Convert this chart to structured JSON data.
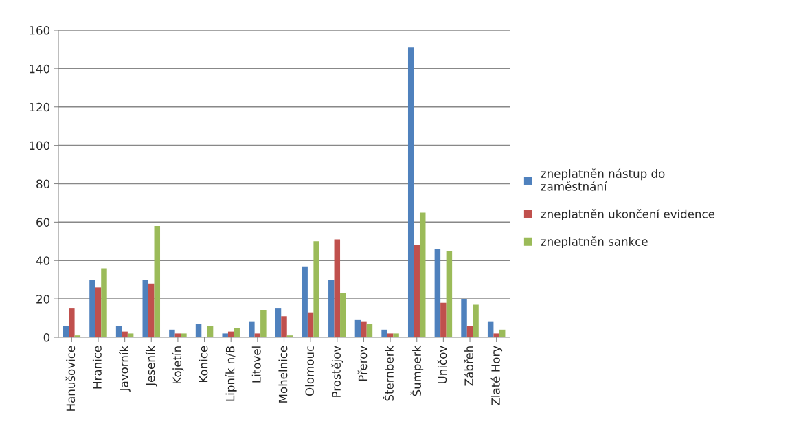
{
  "chart_data": {
    "type": "bar",
    "categories": [
      "Hanušovice",
      "Hranice",
      "Javorník",
      "Jeseník",
      "Kojetín",
      "Konice",
      "Lipník n/B",
      "Litovel",
      "Mohelnice",
      "Olomouc",
      "Prostějov",
      "Přerov",
      "Šternberk",
      "Šumperk",
      "Uničov",
      "Zábřeh",
      "Zlaté Hory"
    ],
    "series": [
      {
        "name": "zneplatněn nástup do\nzaměstnání",
        "color": "#4f81bd",
        "values": [
          6,
          30,
          6,
          30,
          4,
          7,
          2,
          8,
          15,
          37,
          30,
          9,
          4,
          151,
          46,
          20,
          8
        ]
      },
      {
        "name": "zneplatněn ukončení evidence",
        "color": "#c0504d",
        "values": [
          15,
          26,
          3,
          28,
          2,
          0,
          3,
          2,
          11,
          13,
          51,
          8,
          2,
          48,
          18,
          6,
          2
        ]
      },
      {
        "name": "zneplatněn sankce",
        "color": "#9bbb59",
        "values": [
          1,
          36,
          2,
          58,
          2,
          6,
          5,
          14,
          1,
          50,
          23,
          7,
          2,
          65,
          45,
          17,
          4
        ]
      }
    ],
    "ylim": [
      0,
      160
    ],
    "yticks": [
      0,
      20,
      40,
      60,
      80,
      100,
      120,
      140,
      160
    ],
    "grid": "y",
    "legend": "right"
  }
}
